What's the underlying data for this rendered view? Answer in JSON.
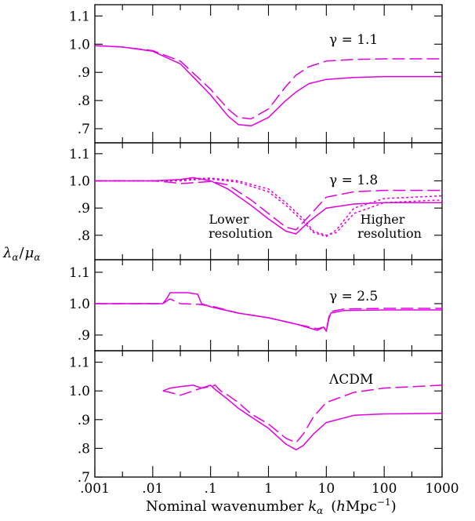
{
  "chart_data": {
    "type": "line",
    "x_scale": "log",
    "xlim": [
      0.001,
      1000
    ],
    "x_tick_labels": [
      ".001",
      ".01",
      ".1",
      "1",
      "10",
      "100",
      "1000"
    ],
    "xlabel_text": "Nominal wavenumber",
    "xlabel_symbol": "k",
    "xlabel_symbol_sub": "α",
    "xlabel_units_pre": "(",
    "xlabel_units_h": "h",
    "xlabel_units_main": "Mpc",
    "xlabel_units_sup": "−1",
    "xlabel_units_post": ")",
    "ylabel_main": "λ",
    "ylabel_main_sub": "α",
    "ylabel_slash": "/",
    "ylabel_den": "μ",
    "ylabel_den_sub": "α",
    "line_color": "#e000e0",
    "grid": false,
    "panels": [
      {
        "label": "γ = 1.1",
        "ylim": [
          0.65,
          1.14
        ],
        "y_ticks": [
          0.7,
          0.8,
          0.9,
          1.0,
          1.1
        ],
        "y_tick_labels": [
          ".7",
          ".8",
          ".9",
          "1.0",
          "1.1"
        ],
        "series": [
          {
            "style": "solid",
            "x": [
              0.001,
              0.003,
              0.01,
              0.03,
              0.1,
              0.2,
              0.3,
              0.5,
              1,
              2,
              3,
              5,
              10,
              30,
              100,
              1000
            ],
            "y": [
              0.995,
              0.99,
              0.975,
              0.93,
              0.82,
              0.745,
              0.715,
              0.71,
              0.74,
              0.8,
              0.83,
              0.86,
              0.875,
              0.882,
              0.885,
              0.885
            ]
          },
          {
            "style": "dashed",
            "x": [
              0.001,
              0.003,
              0.01,
              0.03,
              0.1,
              0.2,
              0.3,
              0.5,
              1,
              2,
              3,
              5,
              10,
              30,
              100,
              1000
            ],
            "y": [
              0.995,
              0.99,
              0.977,
              0.94,
              0.84,
              0.77,
              0.74,
              0.735,
              0.77,
              0.85,
              0.89,
              0.92,
              0.94,
              0.946,
              0.948,
              0.948
            ]
          }
        ]
      },
      {
        "label": "γ = 1.8",
        "ylim": [
          0.71,
          1.14
        ],
        "y_ticks": [
          0.8,
          0.9,
          1.0,
          1.1
        ],
        "y_tick_labels": [
          ".8",
          ".9",
          "1.0",
          "1.1"
        ],
        "annotations": [
          {
            "line1": "Lower",
            "line2": "resolution"
          },
          {
            "line1": "Higher",
            "line2": "resolution"
          }
        ],
        "series": [
          {
            "style": "solid",
            "x": [
              0.001,
              0.01,
              0.03,
              0.05,
              0.1,
              0.2,
              0.5,
              1,
              2,
              3,
              5,
              10,
              30,
              100,
              1000
            ],
            "y": [
              1.0,
              1.0,
              1.005,
              1.012,
              1.0,
              0.97,
              0.91,
              0.86,
              0.815,
              0.805,
              0.85,
              0.9,
              0.915,
              0.92,
              0.92
            ]
          },
          {
            "style": "dashed",
            "x": [
              0.001,
              0.01,
              0.02,
              0.03,
              0.05,
              0.1,
              0.2,
              0.5,
              1,
              2,
              3,
              5,
              10,
              30,
              100,
              1000
            ],
            "y": [
              1.0,
              1.0,
              0.995,
              0.99,
              0.993,
              0.998,
              0.985,
              0.93,
              0.88,
              0.83,
              0.82,
              0.87,
              0.94,
              0.96,
              0.965,
              0.965
            ]
          },
          {
            "style": "dotted",
            "x": [
              0.001,
              0.01,
              0.03,
              0.05,
              0.1,
              0.3,
              1,
              2,
              4,
              6,
              10,
              15,
              30,
              100,
              1000
            ],
            "y": [
              1.0,
              1.0,
              1.003,
              1.008,
              1.01,
              1.0,
              0.97,
              0.92,
              0.86,
              0.815,
              0.8,
              0.81,
              0.88,
              0.92,
              0.93
            ]
          },
          {
            "style": "dotted",
            "x": [
              0.001,
              0.01,
              0.03,
              0.05,
              0.1,
              0.3,
              1,
              2,
              4,
              6,
              10,
              15,
              30,
              100,
              1000
            ],
            "y": [
              1.0,
              1.0,
              1.0,
              1.004,
              1.007,
              0.995,
              0.96,
              0.91,
              0.85,
              0.81,
              0.795,
              0.82,
              0.9,
              0.935,
              0.945
            ]
          }
        ]
      },
      {
        "label": "γ = 2.5",
        "ylim": [
          0.85,
          1.14
        ],
        "y_ticks": [
          0.9,
          1.0,
          1.1
        ],
        "y_tick_labels": [
          ".9",
          "1.0",
          "1.1"
        ],
        "series": [
          {
            "style": "solid",
            "x": [
              0.001,
              0.015,
              0.018,
              0.02,
              0.04,
              0.06,
              0.07,
              0.1,
              0.3,
              1,
              3,
              7,
              9,
              10,
              11,
              12,
              20,
              100,
              1000
            ],
            "y": [
              1.0,
              1.0,
              1.02,
              1.035,
              1.035,
              1.03,
              1.0,
              0.99,
              0.97,
              0.955,
              0.935,
              0.915,
              0.925,
              0.912,
              0.95,
              0.97,
              0.978,
              0.98,
              0.98
            ]
          },
          {
            "style": "dashed",
            "x": [
              0.001,
              0.015,
              0.018,
              0.02,
              0.03,
              0.06,
              0.1,
              0.3,
              1,
              3,
              7,
              9,
              10,
              11,
              12,
              20,
              100,
              1000
            ],
            "y": [
              1.0,
              1.0,
              1.01,
              1.015,
              1.0,
              0.998,
              0.993,
              0.97,
              0.955,
              0.935,
              0.92,
              0.925,
              0.915,
              0.955,
              0.975,
              0.983,
              0.985,
              0.985
            ]
          }
        ]
      },
      {
        "label": "ΛCDM",
        "ylim": [
          0.7,
          1.14
        ],
        "y_ticks": [
          0.7,
          0.8,
          0.9,
          1.0,
          1.1
        ],
        "y_tick_labels": [
          ".7",
          ".8",
          ".9",
          "1.0",
          "1.1"
        ],
        "series": [
          {
            "style": "solid",
            "x": [
              0.015,
              0.02,
              0.03,
              0.05,
              0.07,
              0.1,
              0.12,
              0.15,
              0.2,
              0.3,
              0.5,
              1,
              2,
              3,
              4,
              6,
              10,
              30,
              100,
              1000
            ],
            "y": [
              1.0,
              1.01,
              1.015,
              1.02,
              1.01,
              1.02,
              1.005,
              0.99,
              0.97,
              0.94,
              0.91,
              0.87,
              0.815,
              0.795,
              0.81,
              0.85,
              0.89,
              0.915,
              0.92,
              0.922
            ]
          },
          {
            "style": "dashed",
            "x": [
              0.015,
              0.02,
              0.03,
              0.05,
              0.07,
              0.1,
              0.12,
              0.15,
              0.2,
              0.3,
              0.5,
              1,
              2,
              3,
              4,
              6,
              10,
              30,
              100,
              1000
            ],
            "y": [
              1.0,
              0.995,
              0.985,
              1.0,
              1.01,
              1.015,
              1.02,
              1.0,
              0.985,
              0.96,
              0.92,
              0.885,
              0.835,
              0.82,
              0.85,
              0.91,
              0.96,
              0.995,
              1.01,
              1.02
            ]
          }
        ]
      }
    ]
  }
}
